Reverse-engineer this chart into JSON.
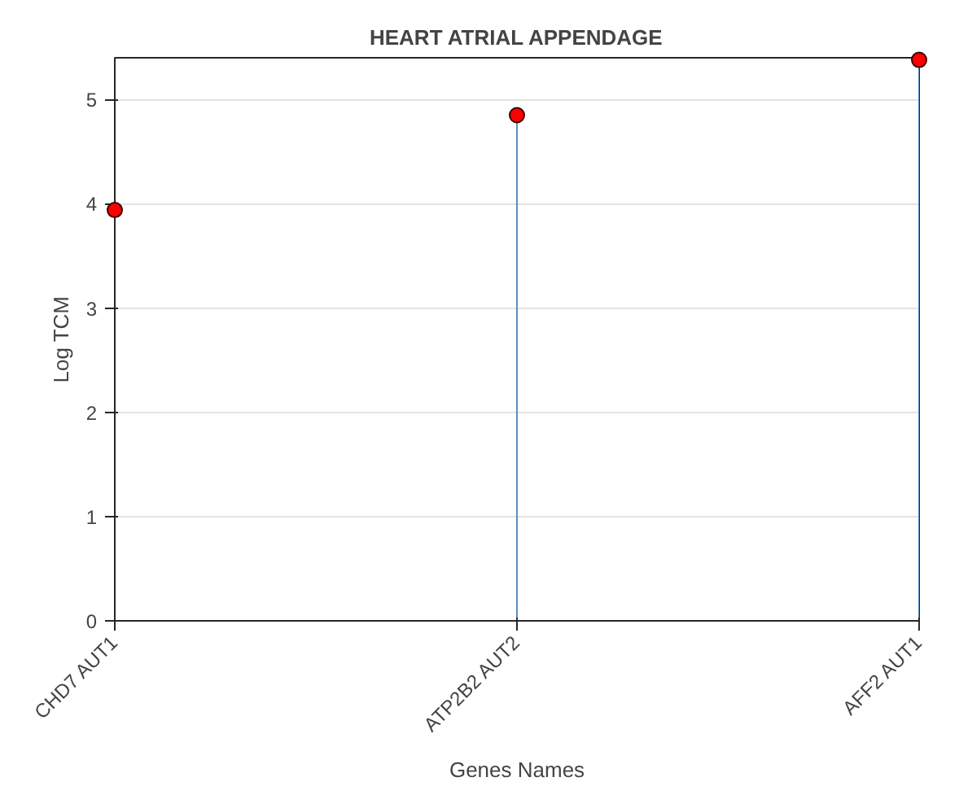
{
  "chart_data": {
    "type": "lollipop",
    "title": "HEART ATRIAL APPENDAGE",
    "xlabel": "Genes Names",
    "ylabel": "Log TCM",
    "categories": [
      "CHD7 AUT1",
      "ATP2B2 AUT2",
      "AFF2 AUT1"
    ],
    "series": [
      {
        "color": "#ff0000",
        "values": [
          3.94,
          4.85,
          5.38
        ]
      }
    ],
    "ylim": [
      0,
      5.4
    ],
    "yticks": [
      0,
      1,
      2,
      3,
      4,
      5
    ],
    "grid": "y",
    "marker": "circle"
  }
}
